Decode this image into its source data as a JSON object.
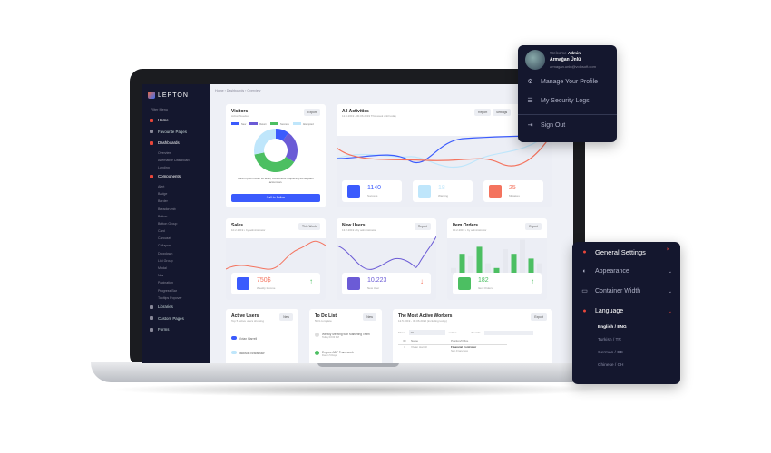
{
  "sidebar": {
    "logo": "LEPTON",
    "filter": "Filter Menu",
    "items": [
      {
        "label": "Home",
        "type": "main",
        "active": true
      },
      {
        "label": "Favourite Pages",
        "type": "main"
      },
      {
        "label": "Dashboards",
        "type": "main",
        "active": true
      },
      {
        "label": "Overview",
        "type": "sub"
      },
      {
        "label": "Alternative Dashboard",
        "type": "sub"
      },
      {
        "label": "Landing",
        "type": "sub"
      },
      {
        "label": "Components",
        "type": "main",
        "active": true
      },
      {
        "label": "Alert",
        "type": "sub"
      },
      {
        "label": "Badge",
        "type": "sub"
      },
      {
        "label": "Border",
        "type": "sub"
      },
      {
        "label": "Breadcrumb",
        "type": "sub"
      },
      {
        "label": "Button",
        "type": "sub"
      },
      {
        "label": "Button Group",
        "type": "sub"
      },
      {
        "label": "Card",
        "type": "sub"
      },
      {
        "label": "Carousel",
        "type": "sub"
      },
      {
        "label": "Collapse",
        "type": "sub"
      },
      {
        "label": "Dropdown",
        "type": "sub"
      },
      {
        "label": "List Group",
        "type": "sub"
      },
      {
        "label": "Modal",
        "type": "sub"
      },
      {
        "label": "Nav",
        "type": "sub"
      },
      {
        "label": "Pagination",
        "type": "sub"
      },
      {
        "label": "Progress Bar",
        "type": "sub"
      },
      {
        "label": "Tooltips Popover",
        "type": "sub"
      },
      {
        "label": "Libraries",
        "type": "main"
      },
      {
        "label": "Custom Pages",
        "type": "main"
      },
      {
        "label": "Forms",
        "type": "main"
      }
    ]
  },
  "breadcrumb": [
    "Home",
    "Dashboards",
    "Overview"
  ],
  "visitors": {
    "title": "Visitors",
    "subtitle": "Action Needed",
    "export": "Export",
    "legend": [
      "New",
      "Return",
      "Success",
      "Attempted"
    ],
    "colors": [
      "#3b5bfd",
      "#6b5bd6",
      "#4cbf62",
      "#bfe6fb"
    ],
    "values": [
      10,
      24,
      38,
      28
    ],
    "text": "Lorem ipsum dolor sit amet, consectetur adipiscing elit aliquam accumsan.",
    "cta": "Call to Action"
  },
  "activities": {
    "title": "All Activities",
    "subtitle": "12.5.2019 - 30.06.2019 This week until today",
    "report": "Report",
    "settings": "Settings",
    "stats": [
      {
        "value": "1140",
        "label": "Success",
        "color": "#3b5bfd"
      },
      {
        "value": "18",
        "label": "Warning",
        "color": "#bfe6fb"
      },
      {
        "value": "25",
        "label": "Mistakes",
        "color": "#f4735e"
      }
    ]
  },
  "sales": {
    "title": "Sales",
    "subtitle": "10.2.2019 • by administrator",
    "button": "This Week",
    "value": "750$",
    "label": "Weekly Income"
  },
  "new_users": {
    "title": "New Users",
    "subtitle": "13.2.2019 • by administrator",
    "button": "Report",
    "value": "10.223",
    "label": "New User"
  },
  "item_orders": {
    "title": "Item Orders",
    "subtitle": "10.2.2019 • by administrator",
    "button": "Export",
    "value": "182",
    "label": "Item Orders",
    "bars": [
      2,
      8,
      7,
      11,
      4,
      2,
      10,
      8,
      14,
      6,
      4
    ]
  },
  "active_users": {
    "title": "Active Users",
    "subtitle": "Top 5 active users showing",
    "button": "New",
    "users": [
      "Vivian Harrell",
      "Jackson Bradshaw"
    ]
  },
  "todo": {
    "title": "To Do List",
    "subtitle": "50/4 complete",
    "button": "New",
    "items": [
      {
        "text": "Weekly Meeting with Marketing Team",
        "meta": "Today 03:00 PM",
        "done": false
      },
      {
        "text": "Explore ABP Framework",
        "meta": "Due in 5 Days",
        "done": true
      }
    ]
  },
  "workers": {
    "title": "The Most Active Workers",
    "subtitle": "12.5.2019 - 30.06.2020 (including today)",
    "export": "Export",
    "show": "Show",
    "entries": "10",
    "entries_label": "entries",
    "search": "Search:",
    "headers": [
      "ID",
      "Name",
      "Position/Office"
    ],
    "rows": [
      {
        "id": "1",
        "name": "Vivian Harrell",
        "position": "Financial Controller",
        "office": "San Francisco"
      }
    ]
  },
  "profile_menu": {
    "welcome": "Welcome",
    "role": "Admin",
    "name": "Armağan Ünlü",
    "email": "armagan.unlu@volosoft.com",
    "items": [
      "Manage Your Profile",
      "My Security Logs",
      "Sign Out"
    ]
  },
  "settings_panel": {
    "title": "General Settings",
    "items": [
      "Appearance",
      "Container Width",
      "Language"
    ],
    "languages": [
      "English / ENG",
      "Turkish / TR",
      "German / DE",
      "Chinese / CH"
    ],
    "selected_language": "English / ENG",
    "accent": "#e8463a"
  }
}
